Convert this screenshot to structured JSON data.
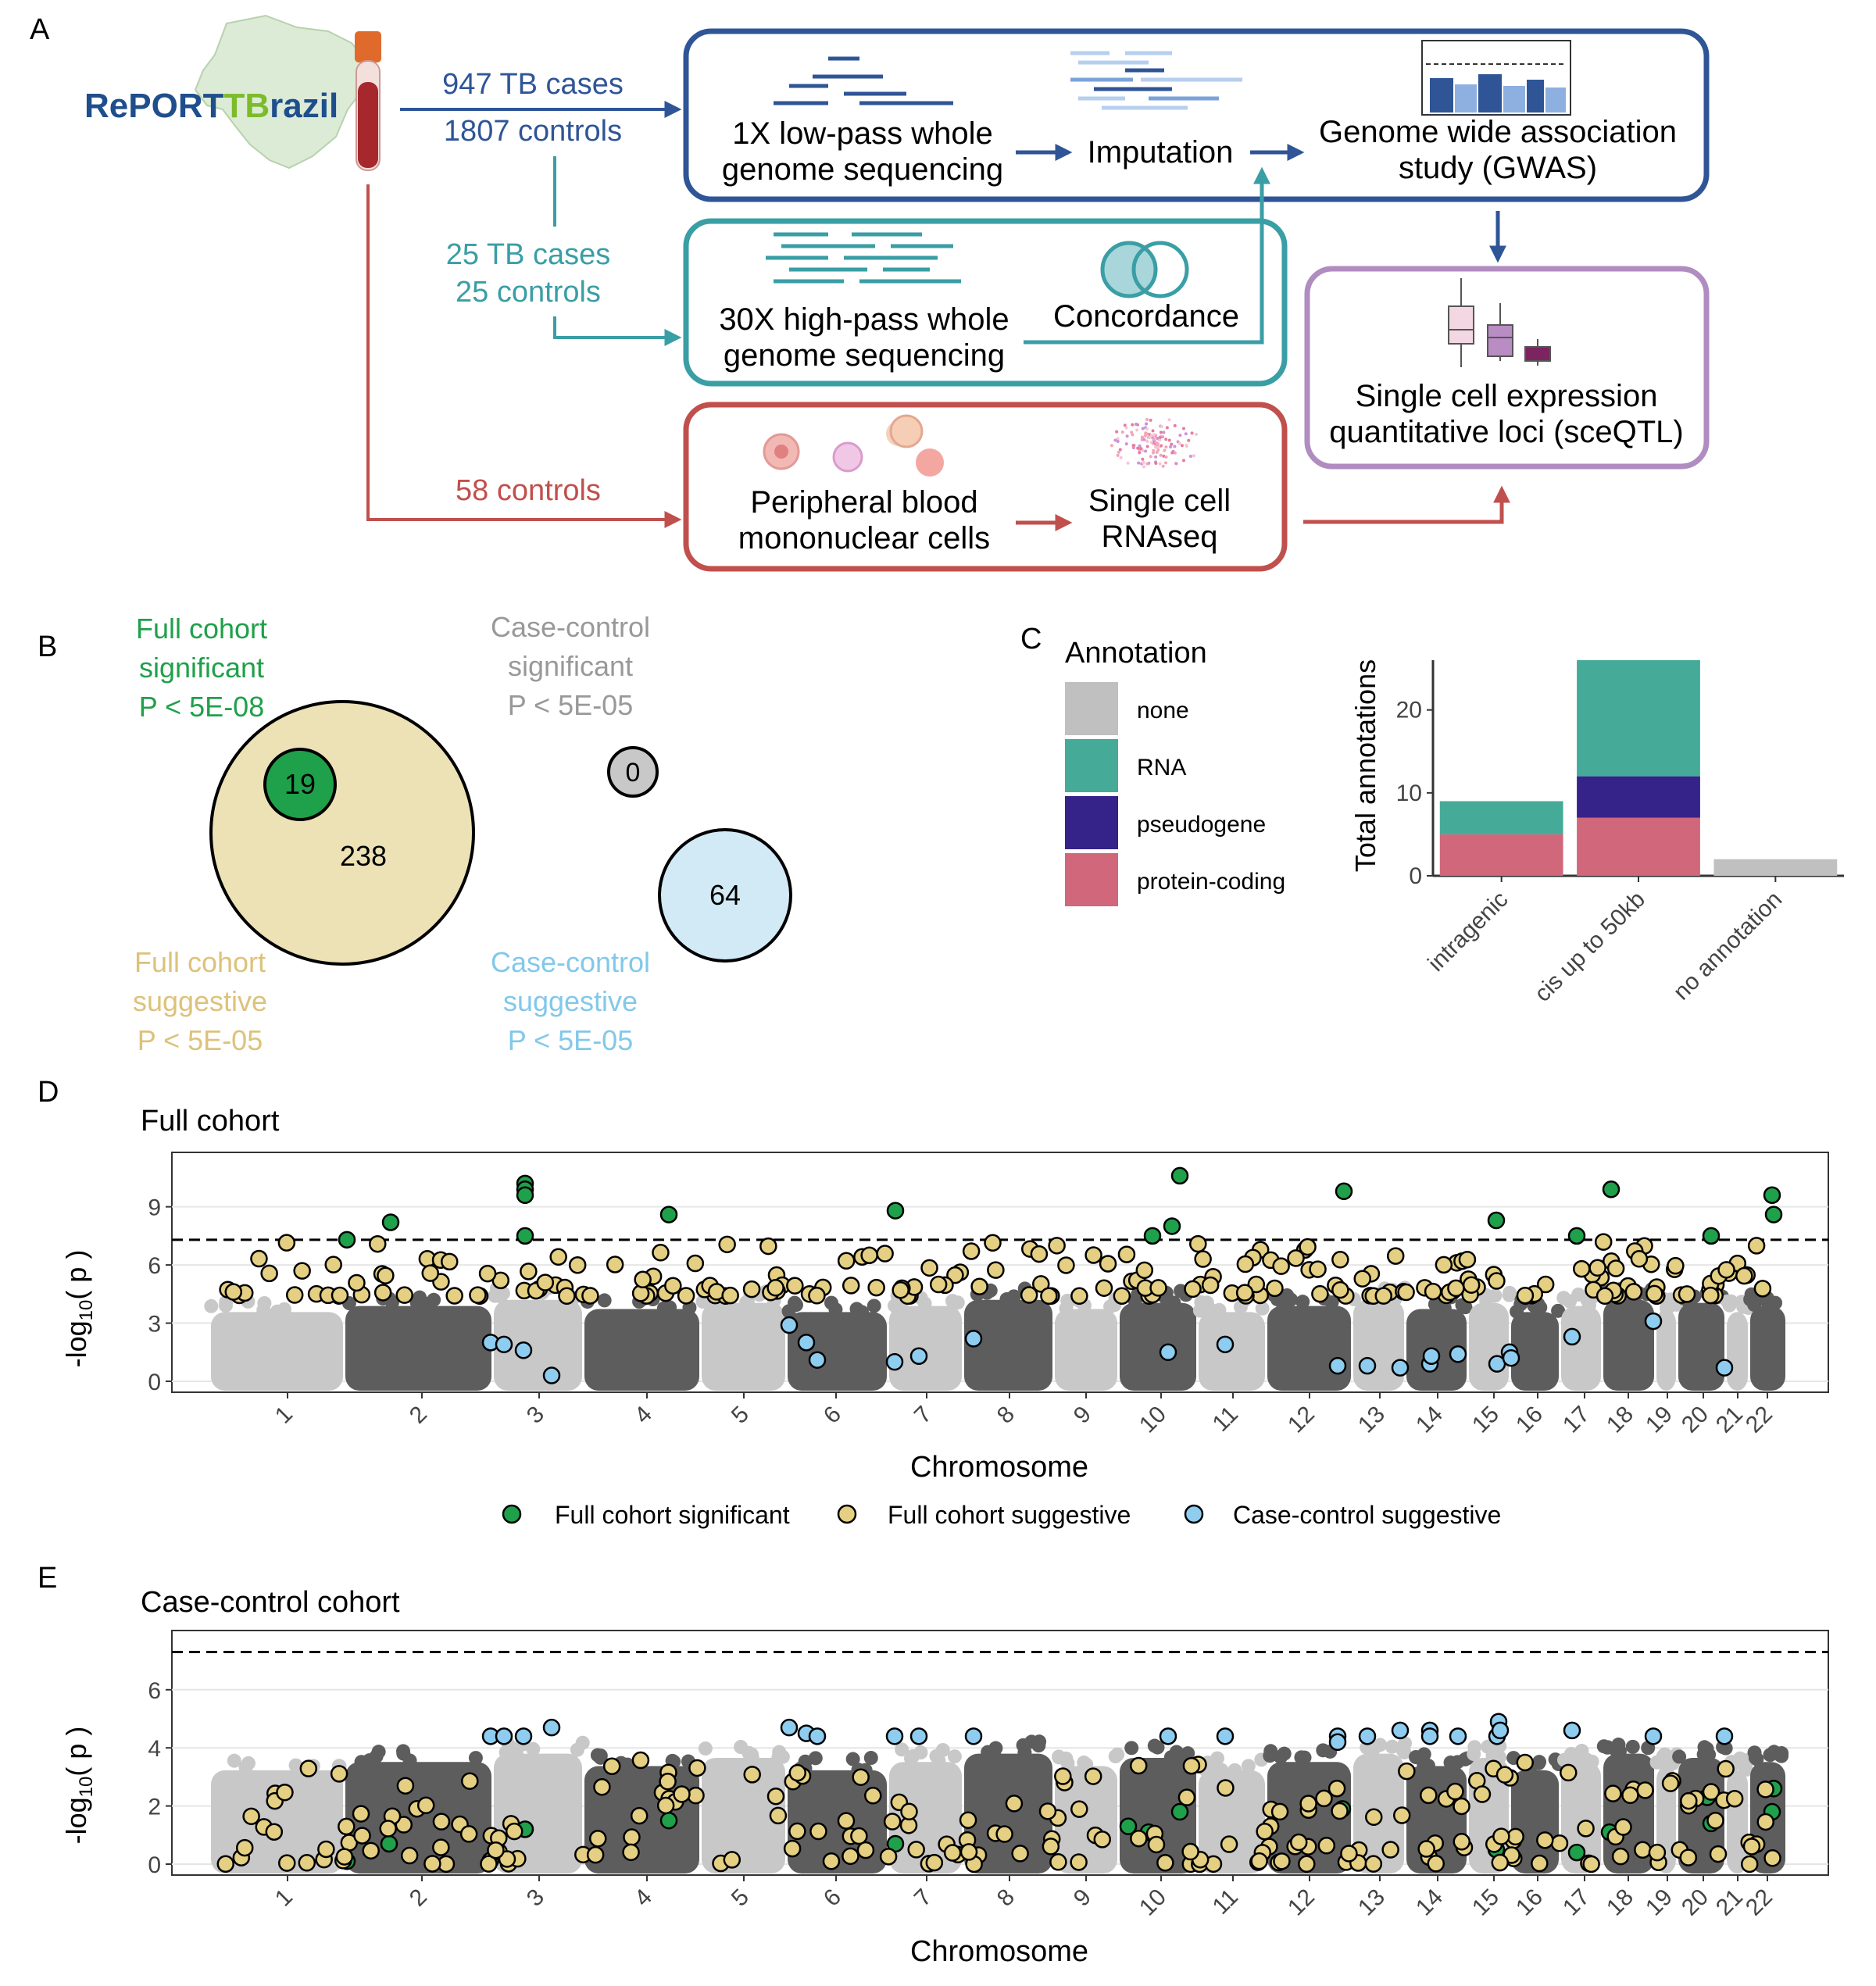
{
  "panels": {
    "a": "A",
    "b": "B",
    "c": "C",
    "d": "D",
    "e": "E"
  },
  "workflow": {
    "logo_part1": "RePORT",
    "logo_part2": "TB",
    "logo_part3": "razil",
    "gwas_cohort": [
      "947 TB cases",
      "1807 controls"
    ],
    "hp_cohort": [
      "25 TB cases",
      "25 controls"
    ],
    "sc_cohort": "58 controls",
    "lowpass": [
      "1X low-pass whole",
      "genome sequencing"
    ],
    "imputation": "Imputation",
    "gwas": [
      "Genome wide association",
      "study (GWAS)"
    ],
    "highpass": [
      "30X high-pass whole",
      "genome sequencing"
    ],
    "concordance": "Concordance",
    "pbmc": [
      "Peripheral blood",
      "mononuclear cells"
    ],
    "scrna": [
      "Single cell",
      "RNAseq"
    ],
    "sceqtl": [
      "Single cell expression",
      "quantitative loci (sceQTL)"
    ],
    "colors": {
      "blue": "#2f5597",
      "teal": "#3a9ea5",
      "red": "#c0504d",
      "purple": "#b08cc0"
    }
  },
  "venn": {
    "full_sig": [
      "Full cohort",
      "significant",
      "P < 5E-08"
    ],
    "cc_sig": [
      "Case-control",
      "significant",
      "P < 5E-05"
    ],
    "full_sug": [
      "Full cohort",
      "suggestive",
      "P < 5E-05"
    ],
    "cc_sug": [
      "Case-control",
      "suggestive",
      "P < 5E-05"
    ],
    "counts": {
      "full_sig": "19",
      "full_sug": "238",
      "cc_sig": "0",
      "cc_sug": "64"
    }
  },
  "chart_data": [
    {
      "type": "bar",
      "stacked": true,
      "ylabel": "Total annotations",
      "legend_title": "Annotation",
      "legend": [
        "none",
        "RNA",
        "pseudogene",
        "protein-coding"
      ],
      "categories": [
        "intragenic",
        "cis up to 50kb",
        "no annotation"
      ],
      "series": [
        {
          "name": "protein-coding",
          "values": [
            5,
            7,
            0
          ],
          "color": "#d0677a"
        },
        {
          "name": "pseudogene",
          "values": [
            0,
            5,
            0
          ],
          "color": "#35238a"
        },
        {
          "name": "RNA",
          "values": [
            4,
            14,
            0
          ],
          "color": "#45ab98"
        },
        {
          "name": "none",
          "values": [
            0,
            0,
            2
          ],
          "color": "#c0c0c0"
        }
      ],
      "ylim": [
        0,
        26
      ],
      "yticks": [
        "0",
        "10",
        "20"
      ]
    },
    {
      "type": "scatter",
      "title": "Full cohort",
      "xlabel": "Chromosome",
      "ylabel": "-log10(p)",
      "chromosomes": [
        "1",
        "2",
        "3",
        "4",
        "5",
        "6",
        "7",
        "8",
        "9",
        "10",
        "11",
        "12",
        "13",
        "14",
        "15",
        "16",
        "17",
        "18",
        "19",
        "20",
        "21",
        "22"
      ],
      "yticks": [
        "0",
        "3",
        "6",
        "9"
      ],
      "ylim": [
        0,
        11
      ],
      "threshold": 7.3,
      "legend": [
        "Full cohort significant",
        "Full cohort suggestive",
        "Case-control suggestive"
      ],
      "legend_colors": [
        "#1fa04a",
        "#e4cf82",
        "#8ecdf0"
      ]
    },
    {
      "type": "scatter",
      "title": "Case-control cohort",
      "xlabel": "Chromosome",
      "ylabel": "-log10(p)",
      "chromosomes": [
        "1",
        "2",
        "3",
        "4",
        "5",
        "6",
        "7",
        "8",
        "9",
        "10",
        "11",
        "12",
        "13",
        "14",
        "15",
        "16",
        "17",
        "18",
        "19",
        "20",
        "21",
        "22"
      ],
      "yticks": [
        "0",
        "2",
        "4",
        "6"
      ],
      "ylim": [
        0,
        7.5
      ],
      "threshold": 7.3
    }
  ]
}
